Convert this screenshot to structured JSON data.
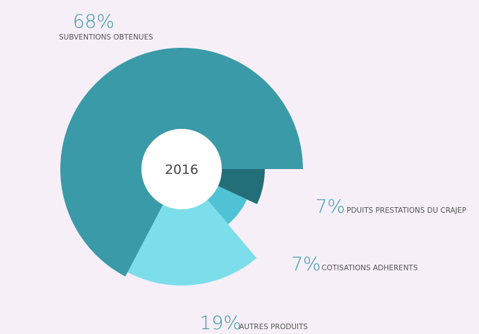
{
  "chart_data": {
    "type": "pie",
    "center_label": "2016",
    "categories": [
      "PDUITS PRESTATIONS DU CRAJEP",
      "COTISATIONS ADHERENTS",
      "AUTRES PRODUITS",
      "SUBVENTIONS OBTENUES"
    ],
    "values": [
      7,
      7,
      19,
      68
    ],
    "value_labels": [
      "7%",
      "7%",
      "19%",
      "68%"
    ],
    "colors": [
      "#236f79",
      "#4fc3d5",
      "#7cdeeb",
      "#3a9aa8"
    ]
  }
}
